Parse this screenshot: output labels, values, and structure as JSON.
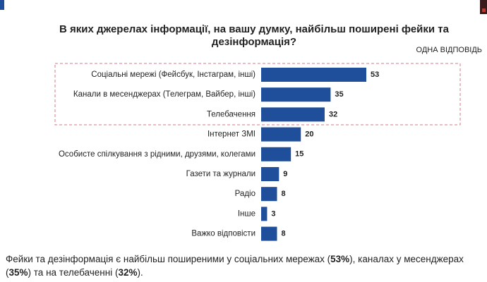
{
  "chart_data": {
    "type": "bar",
    "orientation": "horizontal",
    "title": [
      "В яких джерелах інформації, на вашу думку, найбільш поширені фейки та",
      "дезінформація?"
    ],
    "note": "ОДНА ВІДПОВІДЬ",
    "categories": [
      "Соціальні мережі (Фейсбук, Інстаграм, інші)",
      "Канали в месенджерах (Телеграм, Вайбер, інші)",
      "Телебачення",
      "Інтернет ЗМІ",
      "Особисте спілкування з рідними, друзями, колегами",
      "Газети та журнали",
      "Радіо",
      "Інше",
      "Важко відповісти"
    ],
    "values": [
      53,
      35,
      32,
      20,
      15,
      9,
      8,
      3,
      8
    ],
    "color": "#1f4e9b"
  },
  "footer": {
    "parts": [
      {
        "text": "Фейки та дезінформація є найбільш поширеними у соціальних мережах (",
        "bold": false
      },
      {
        "text": "53%",
        "bold": true
      },
      {
        "text": "), каналах у месенджерах (",
        "bold": false
      },
      {
        "text": "35%",
        "bold": true
      },
      {
        "text": ") та на телебаченні (",
        "bold": false
      },
      {
        "text": "32%",
        "bold": true
      },
      {
        "text": ").",
        "bold": false
      }
    ]
  }
}
